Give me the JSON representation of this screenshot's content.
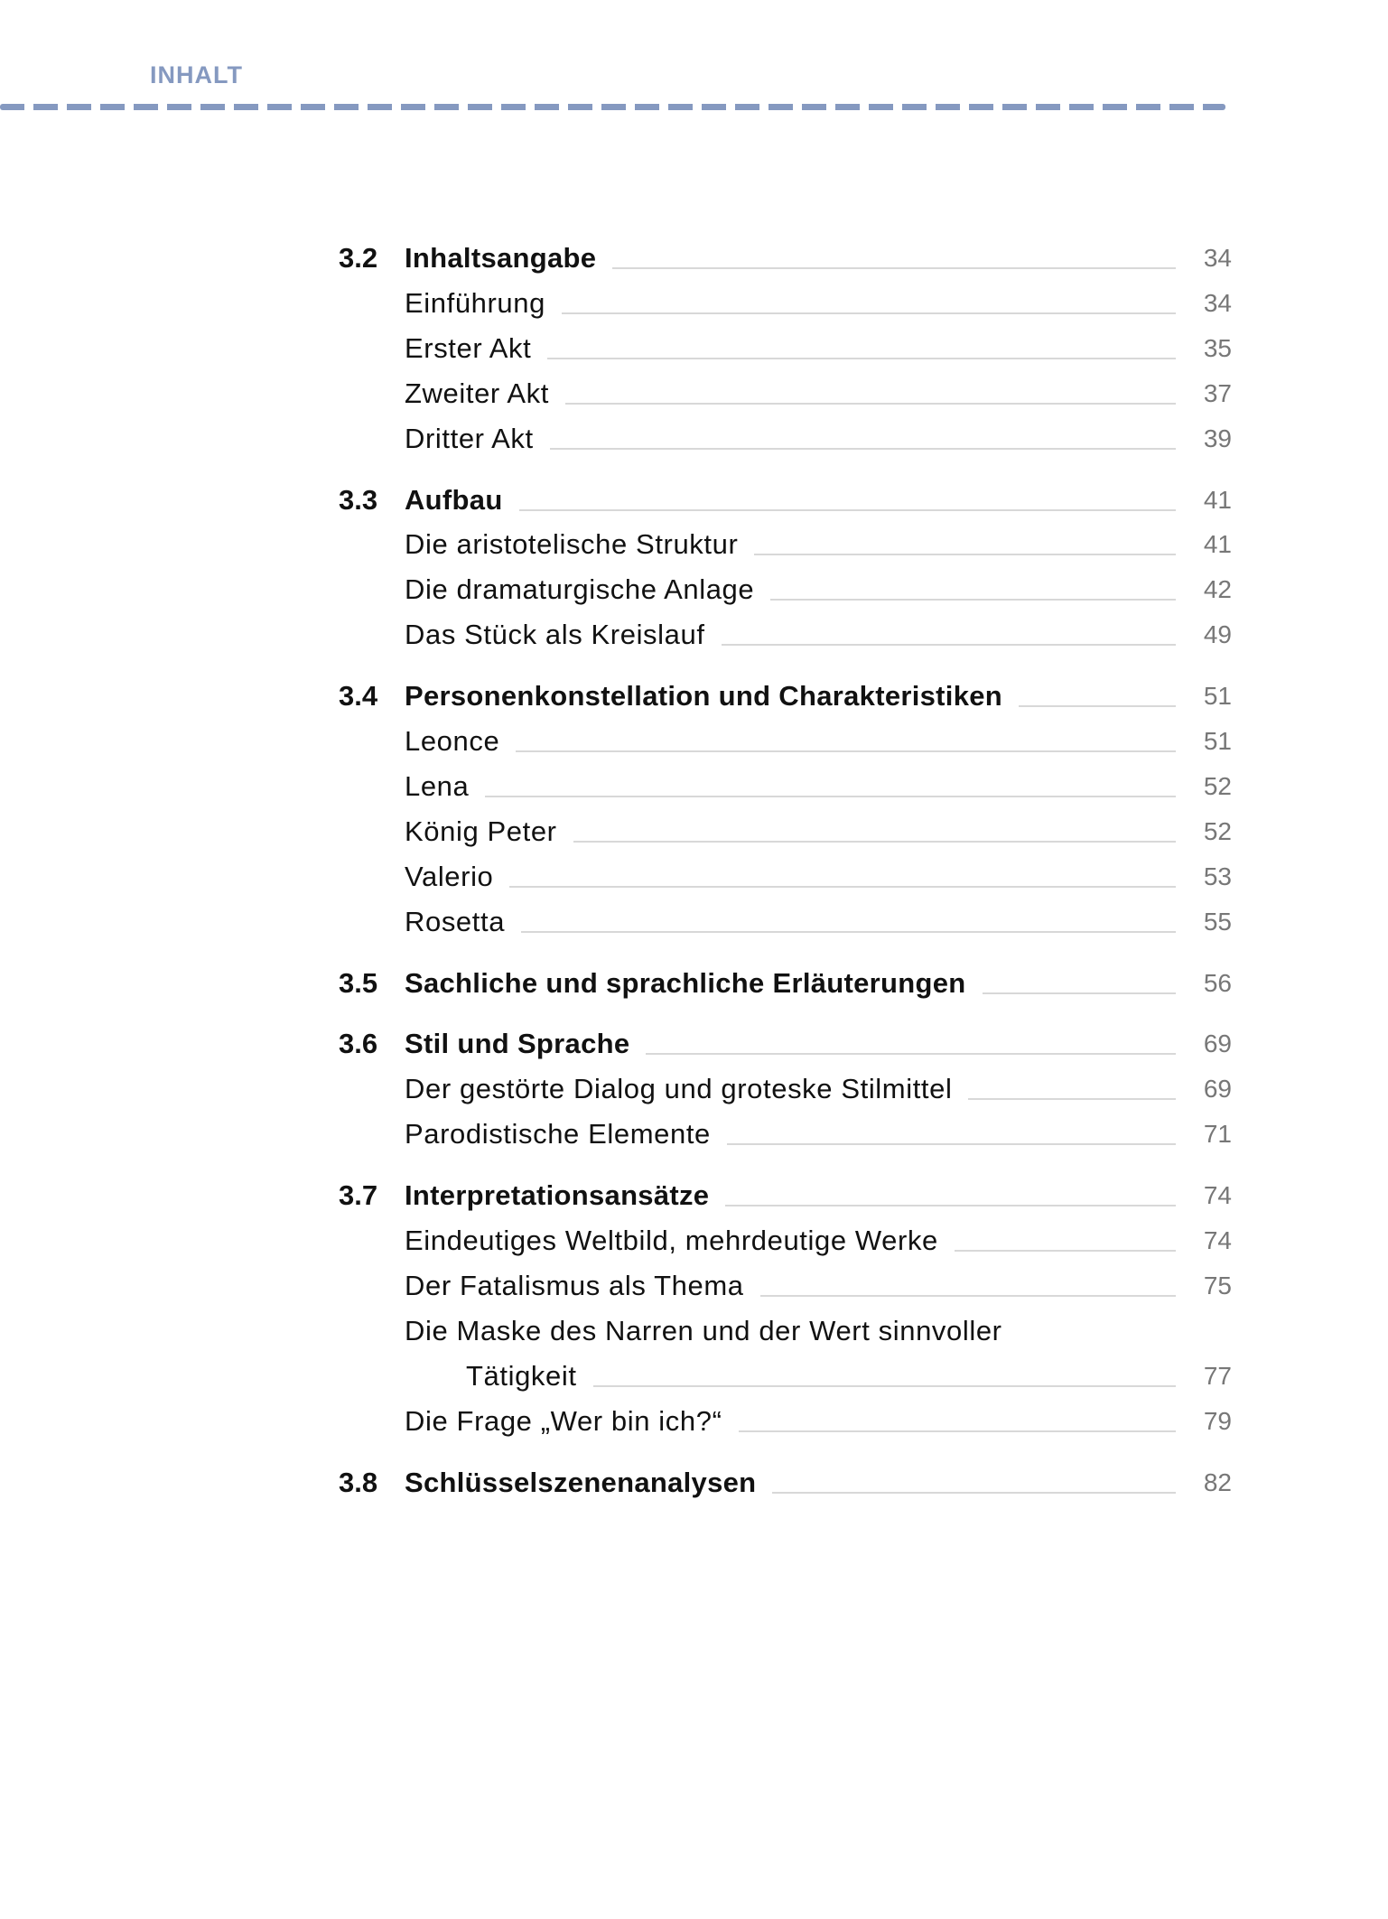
{
  "header": {
    "title": "INHALT",
    "accent_color": "#8599c0"
  },
  "toc": [
    {
      "number": "3.2",
      "title": "Inhaltsangabe",
      "page": "34",
      "items": [
        {
          "title": "Einführung",
          "page": "34"
        },
        {
          "title": "Erster Akt",
          "page": "35"
        },
        {
          "title": "Zweiter Akt",
          "page": "37"
        },
        {
          "title": "Dritter Akt",
          "page": "39"
        }
      ]
    },
    {
      "number": "3.3",
      "title": "Aufbau",
      "page": "41",
      "items": [
        {
          "title": "Die aristotelische Struktur",
          "page": "41"
        },
        {
          "title": "Die dramaturgische Anlage",
          "page": "42"
        },
        {
          "title": "Das Stück als Kreislauf",
          "page": "49"
        }
      ]
    },
    {
      "number": "3.4",
      "title": "Personenkonstellation und Charakteristiken",
      "page": "51",
      "items": [
        {
          "title": "Leonce",
          "page": "51"
        },
        {
          "title": "Lena",
          "page": "52"
        },
        {
          "title": "König Peter",
          "page": "52"
        },
        {
          "title": "Valerio",
          "page": "53"
        },
        {
          "title": "Rosetta",
          "page": "55"
        }
      ]
    },
    {
      "number": "3.5",
      "title": "Sachliche und sprachliche Erläuterungen",
      "page": "56",
      "items": []
    },
    {
      "number": "3.6",
      "title": "Stil und Sprache",
      "page": "69",
      "items": [
        {
          "title": "Der gestörte Dialog und groteske Stilmittel",
          "page": "69"
        },
        {
          "title": "Parodistische Elemente",
          "page": "71"
        }
      ]
    },
    {
      "number": "3.7",
      "title": "Interpretationsansätze",
      "page": "74",
      "items": [
        {
          "title": "Eindeutiges Weltbild, mehrdeutige Werke",
          "page": "74"
        },
        {
          "title": "Der Fatalismus als Thema",
          "page": "75"
        },
        {
          "title": "Die Maske des Narren und der Wert sinnvoller",
          "continuation": "Tätigkeit",
          "page": "77"
        },
        {
          "title": "Die Frage „Wer bin ich?“",
          "page": "79"
        }
      ]
    },
    {
      "number": "3.8",
      "title": "Schlüsselszenenanalysen",
      "page": "82",
      "items": []
    }
  ]
}
